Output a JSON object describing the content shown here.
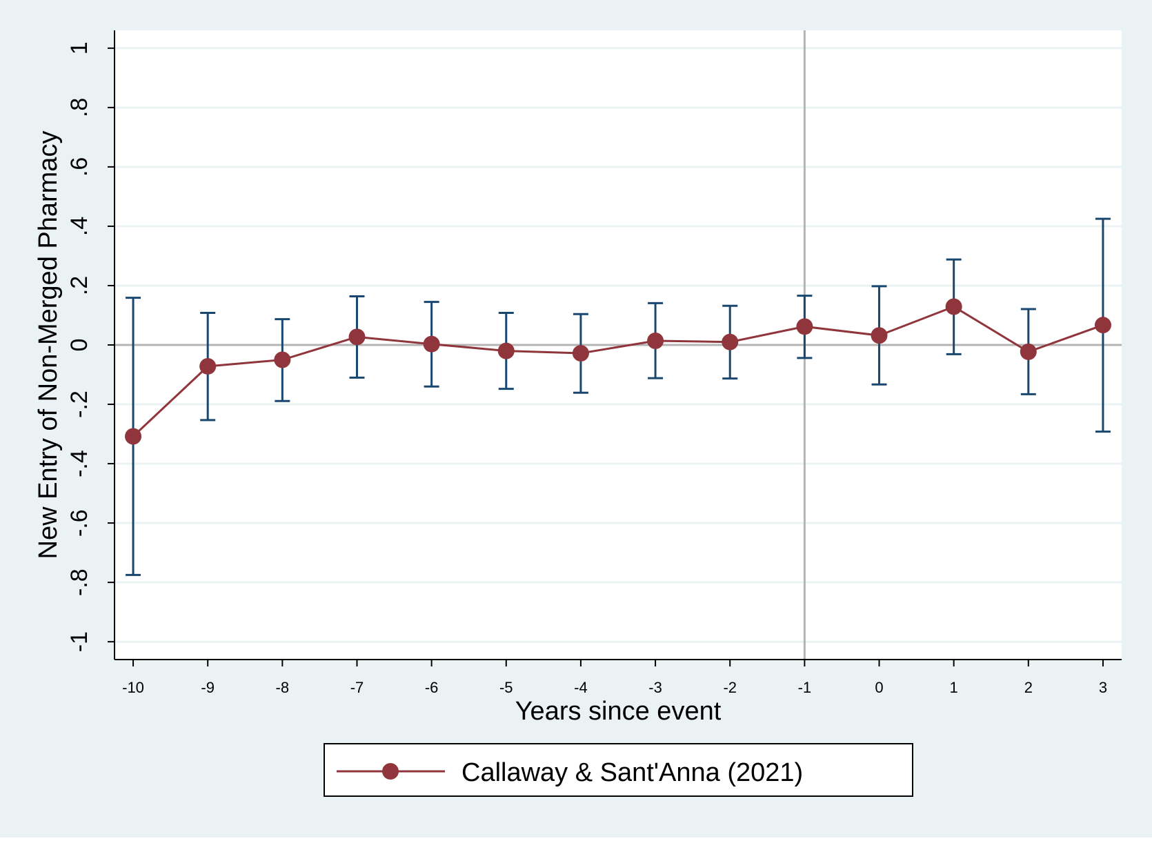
{
  "colors": {
    "background": "#eaf2f3",
    "plot_background": "#ffffff",
    "grid": "#eaf2f3",
    "axis": "#000000",
    "series_line": "#90353b",
    "error_bar": "#1a476f",
    "reference_line": "#b4b4b4"
  },
  "chart_data": {
    "type": "line",
    "xlabel": "Years since event",
    "ylabel": "New Entry of Non-Merged Pharmacy",
    "x_ticks": [
      -10,
      -9,
      -8,
      -7,
      -6,
      -5,
      -4,
      -3,
      -2,
      -1,
      0,
      1,
      2,
      3
    ],
    "x_tick_labels": [
      "-10",
      "-9",
      "-8",
      "-7",
      "-6",
      "-5",
      "-4",
      "-3",
      "-2",
      "-1",
      "0",
      "1",
      "2",
      "3"
    ],
    "y_ticks": [
      -1,
      -0.8,
      -0.6,
      -0.4,
      -0.2,
      0,
      0.2,
      0.4,
      0.6,
      0.8,
      1
    ],
    "y_tick_labels": [
      "-1",
      "-.8",
      "-.6",
      "-.4",
      "-.2",
      "0",
      ".2",
      ".4",
      ".6",
      ".8",
      "1"
    ],
    "xlim": [
      -10.25,
      3.25
    ],
    "ylim": [
      -1.06,
      1.06
    ],
    "grid": "horizontal",
    "reference_lines": {
      "vertical_x": -1,
      "horizontal_y": 0
    },
    "legend_position": "bottom",
    "series": [
      {
        "name": "Callaway & Sant'Anna (2021)",
        "x": [
          -10,
          -9,
          -8,
          -7,
          -6,
          -5,
          -4,
          -3,
          -2,
          -1,
          0,
          1,
          2,
          3
        ],
        "y": [
          -0.308,
          -0.072,
          -0.05,
          0.027,
          0.003,
          -0.02,
          -0.028,
          0.014,
          0.01,
          0.062,
          0.032,
          0.129,
          -0.023,
          0.067
        ],
        "ci_lower": [
          -0.775,
          -0.253,
          -0.189,
          -0.11,
          -0.14,
          -0.148,
          -0.161,
          -0.112,
          -0.113,
          -0.044,
          -0.133,
          -0.031,
          -0.166,
          -0.292
        ],
        "ci_upper": [
          0.159,
          0.108,
          0.087,
          0.164,
          0.145,
          0.108,
          0.104,
          0.141,
          0.132,
          0.166,
          0.198,
          0.288,
          0.121,
          0.425
        ]
      }
    ]
  }
}
